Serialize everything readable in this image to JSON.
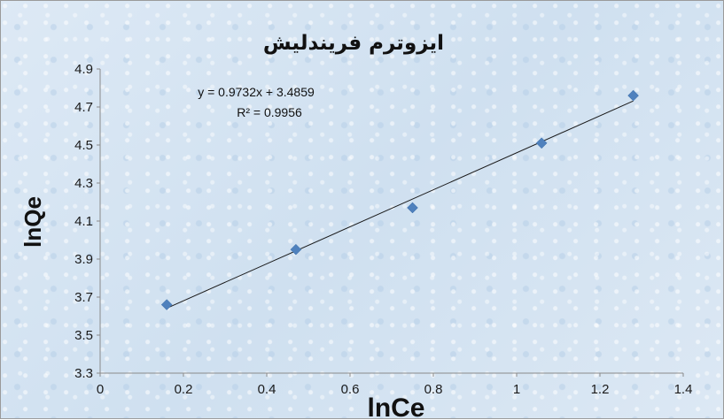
{
  "chart_data": {
    "type": "scatter",
    "title": "ایزوترم فریندلیش",
    "xlabel": "lnCe",
    "ylabel": "lnQe",
    "xlim": [
      0,
      1.4
    ],
    "ylim": [
      3.3,
      4.9
    ],
    "x_ticks": [
      "0",
      "0.2",
      "0.4",
      "0.6",
      "0.8",
      "1",
      "1.2",
      "1.4"
    ],
    "y_ticks": [
      "3.3",
      "3.5",
      "3.7",
      "3.9",
      "4.1",
      "4.3",
      "4.5",
      "4.7",
      "4.9"
    ],
    "points": [
      {
        "x": 0.16,
        "y": 3.66
      },
      {
        "x": 0.47,
        "y": 3.95
      },
      {
        "x": 0.75,
        "y": 4.17
      },
      {
        "x": 1.06,
        "y": 4.51
      },
      {
        "x": 1.28,
        "y": 4.76
      }
    ],
    "trendline": {
      "slope": 0.9732,
      "intercept": 3.4859,
      "x_range": [
        0.16,
        1.28
      ]
    },
    "equation": "y = 0.9732x + 3.4859",
    "r_squared": "R² = 0.9956",
    "marker_color": "#4f81bd",
    "line_color": "#1a1a1a"
  }
}
